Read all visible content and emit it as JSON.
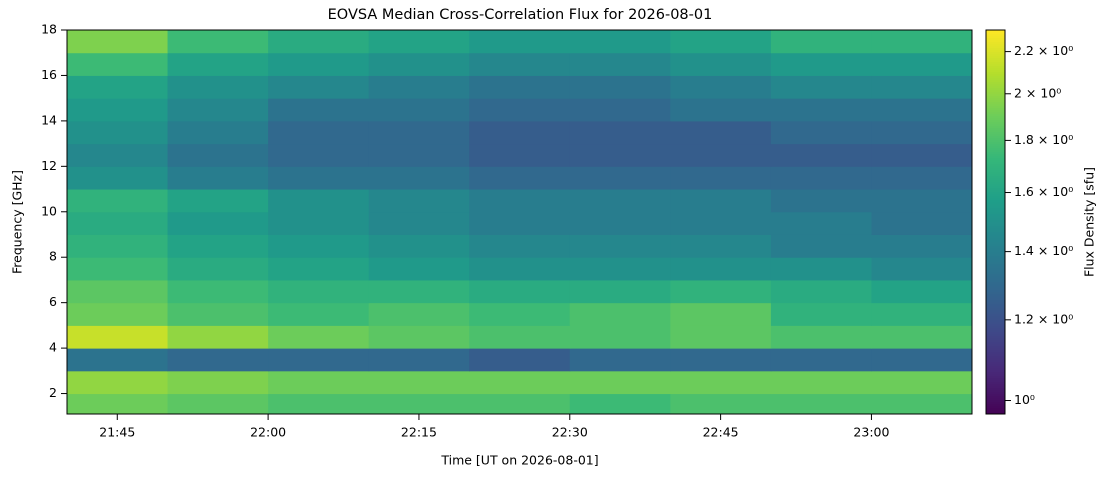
{
  "chart_data": {
    "type": "heatmap",
    "title": "EOVSA Median Cross-Correlation Flux for 2026-08-01",
    "x_label": "Time [UT on 2026-08-01]",
    "y_label": "Frequency [GHz]",
    "colorbar_label": "Flux Density [sfu]",
    "colormap": "viridis",
    "color_log_scale": true,
    "x": [
      "21:40",
      "21:50",
      "22:00",
      "22:10",
      "22:20",
      "22:30",
      "22:40",
      "22:50",
      "23:00",
      "23:10"
    ],
    "y_bins": [
      1.1,
      2,
      3,
      4,
      5,
      6,
      7,
      8,
      9,
      10,
      11,
      12,
      13,
      14,
      15,
      16,
      17,
      18
    ],
    "values": [
      [
        1.9,
        1.85,
        1.8,
        1.8,
        1.8,
        1.75,
        1.8,
        1.8,
        1.8
      ],
      [
        2.0,
        1.95,
        1.9,
        1.9,
        1.9,
        1.9,
        1.9,
        1.9,
        1.9
      ],
      [
        1.35,
        1.3,
        1.3,
        1.3,
        1.25,
        1.3,
        1.3,
        1.3,
        1.3
      ],
      [
        2.15,
        2.0,
        1.9,
        1.85,
        1.8,
        1.8,
        1.85,
        1.8,
        1.8
      ],
      [
        1.9,
        1.8,
        1.75,
        1.8,
        1.75,
        1.8,
        1.85,
        1.7,
        1.7
      ],
      [
        1.85,
        1.75,
        1.7,
        1.7,
        1.65,
        1.65,
        1.7,
        1.65,
        1.6
      ],
      [
        1.75,
        1.65,
        1.6,
        1.55,
        1.5,
        1.5,
        1.5,
        1.5,
        1.45
      ],
      [
        1.7,
        1.6,
        1.55,
        1.5,
        1.45,
        1.45,
        1.45,
        1.4,
        1.4
      ],
      [
        1.65,
        1.55,
        1.5,
        1.45,
        1.4,
        1.4,
        1.4,
        1.4,
        1.35
      ],
      [
        1.7,
        1.6,
        1.5,
        1.45,
        1.4,
        1.4,
        1.4,
        1.35,
        1.35
      ],
      [
        1.5,
        1.4,
        1.35,
        1.35,
        1.3,
        1.3,
        1.3,
        1.3,
        1.3
      ],
      [
        1.45,
        1.35,
        1.3,
        1.3,
        1.25,
        1.25,
        1.25,
        1.25,
        1.25
      ],
      [
        1.5,
        1.4,
        1.3,
        1.3,
        1.25,
        1.25,
        1.25,
        1.3,
        1.3
      ],
      [
        1.55,
        1.45,
        1.35,
        1.35,
        1.3,
        1.3,
        1.35,
        1.35,
        1.35
      ],
      [
        1.6,
        1.5,
        1.45,
        1.4,
        1.35,
        1.35,
        1.4,
        1.45,
        1.45
      ],
      [
        1.75,
        1.6,
        1.55,
        1.5,
        1.45,
        1.45,
        1.5,
        1.55,
        1.55
      ],
      [
        1.95,
        1.75,
        1.65,
        1.6,
        1.55,
        1.55,
        1.6,
        1.7,
        1.7
      ]
    ],
    "xlim": [
      "21:40",
      "23:10"
    ],
    "xticks": [
      "21:45",
      "22:00",
      "22:15",
      "22:30",
      "22:45",
      "23:00"
    ],
    "ylim": [
      1.1,
      18
    ],
    "yticks": [
      2,
      4,
      6,
      8,
      10,
      12,
      14,
      16,
      18
    ],
    "clim": [
      0.97,
      2.31
    ],
    "cticks": [
      {
        "value": 1.0,
        "label": "10⁰"
      },
      {
        "value": 1.2,
        "label": "1.2 × 10⁰"
      },
      {
        "value": 1.4,
        "label": "1.4 × 10⁰"
      },
      {
        "value": 1.6,
        "label": "1.6 × 10⁰"
      },
      {
        "value": 1.8,
        "label": "1.8 × 10⁰"
      },
      {
        "value": 2.0,
        "label": "2 × 10⁰"
      },
      {
        "value": 2.2,
        "label": "2.2 × 10⁰"
      }
    ]
  }
}
